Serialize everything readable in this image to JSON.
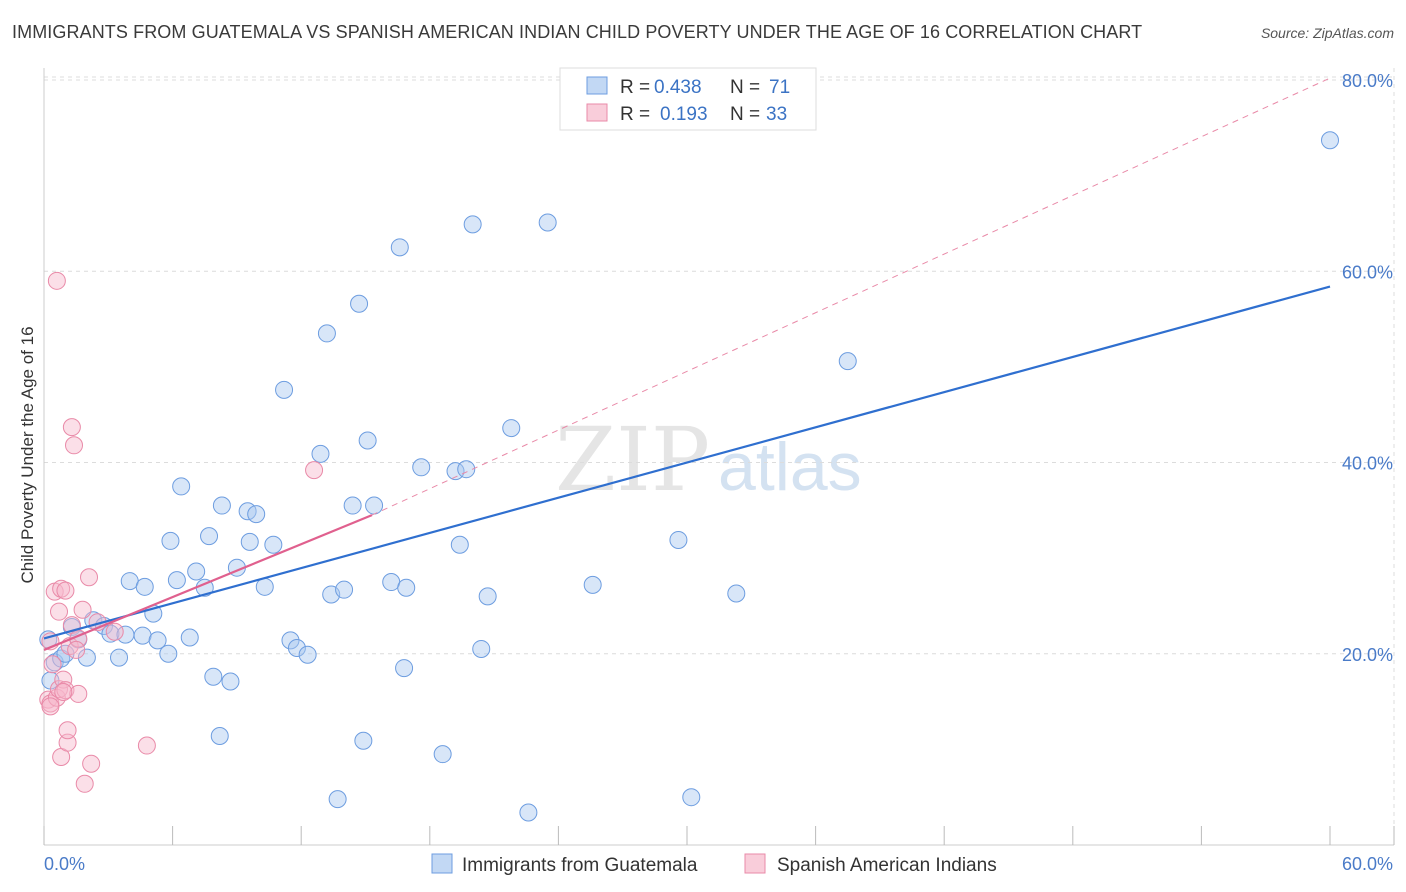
{
  "title": "IMMIGRANTS FROM GUATEMALA VS SPANISH AMERICAN INDIAN CHILD POVERTY UNDER THE AGE OF 16 CORRELATION CHART",
  "source": "Source: ZipAtlas.com",
  "colors": {
    "blue": "#a8c8f0",
    "blue_stroke": "#6d9de0",
    "blue_line": "#2f6fcf",
    "pink": "#f7b8cb",
    "pink_stroke": "#e98aa8",
    "pink_line": "#e0608e",
    "grid": "#dcdcdc",
    "tick_text": "#4a7bc8"
  },
  "legend": {
    "r_label": "R =",
    "n_label": "N =",
    "series": [
      {
        "r": "0.438",
        "n": "71"
      },
      {
        "r": "0.193",
        "n": "33"
      }
    ]
  },
  "bottom_legend": [
    "Immigrants from Guatemala",
    "Spanish American Indians"
  ],
  "watermark": {
    "zip": "ZIP",
    "atlas": "atlas"
  },
  "chart_data": {
    "type": "scatter",
    "ylabel": "Child Poverty Under the Age of 16",
    "xlim": [
      0,
      60
    ],
    "ylim": [
      0,
      80
    ],
    "x_tick_labels": [
      "0.0%",
      "60.0%"
    ],
    "y_ticks": [
      20,
      40,
      60,
      80
    ],
    "y_tick_labels": [
      "20.0%",
      "40.0%",
      "60.0%",
      "80.0%"
    ],
    "grid": true,
    "legend_position": "top-center",
    "series": [
      {
        "name": "Immigrants from Guatemala",
        "points": [
          [
            0.3,
            17.2
          ],
          [
            0.5,
            19.1
          ],
          [
            0.8,
            19.5
          ],
          [
            1.0,
            20.0
          ],
          [
            1.3,
            22.8
          ],
          [
            1.6,
            21.5
          ],
          [
            2.0,
            19.6
          ],
          [
            2.3,
            23.5
          ],
          [
            2.8,
            22.9
          ],
          [
            3.1,
            22.1
          ],
          [
            3.5,
            19.6
          ],
          [
            3.8,
            22.0
          ],
          [
            4.0,
            27.6
          ],
          [
            4.6,
            21.9
          ],
          [
            4.7,
            27.0
          ],
          [
            5.1,
            24.2
          ],
          [
            5.3,
            21.4
          ],
          [
            5.8,
            20.0
          ],
          [
            5.9,
            31.8
          ],
          [
            6.2,
            27.7
          ],
          [
            6.4,
            37.5
          ],
          [
            6.8,
            21.7
          ],
          [
            7.1,
            28.6
          ],
          [
            7.5,
            26.9
          ],
          [
            7.7,
            32.3
          ],
          [
            7.9,
            17.6
          ],
          [
            8.2,
            11.4
          ],
          [
            8.3,
            35.5
          ],
          [
            8.7,
            17.1
          ],
          [
            9.0,
            29.0
          ],
          [
            9.5,
            34.9
          ],
          [
            9.6,
            31.7
          ],
          [
            9.9,
            34.6
          ],
          [
            10.3,
            27.0
          ],
          [
            10.7,
            31.4
          ],
          [
            11.2,
            47.6
          ],
          [
            11.5,
            21.4
          ],
          [
            11.8,
            20.6
          ],
          [
            12.3,
            19.9
          ],
          [
            12.9,
            40.9
          ],
          [
            13.2,
            53.5
          ],
          [
            13.4,
            26.2
          ],
          [
            13.7,
            4.8
          ],
          [
            14.0,
            26.7
          ],
          [
            14.4,
            35.5
          ],
          [
            14.7,
            56.6
          ],
          [
            14.9,
            10.9
          ],
          [
            15.1,
            42.3
          ],
          [
            15.4,
            35.5
          ],
          [
            16.2,
            27.5
          ],
          [
            16.6,
            62.5
          ],
          [
            16.8,
            18.5
          ],
          [
            16.9,
            26.9
          ],
          [
            17.6,
            39.5
          ],
          [
            18.6,
            9.5
          ],
          [
            19.2,
            39.1
          ],
          [
            19.4,
            31.4
          ],
          [
            19.7,
            39.3
          ],
          [
            20.0,
            64.9
          ],
          [
            20.4,
            20.5
          ],
          [
            20.7,
            26.0
          ],
          [
            21.8,
            43.6
          ],
          [
            22.6,
            3.4
          ],
          [
            23.5,
            65.1
          ],
          [
            25.6,
            27.2
          ],
          [
            29.6,
            31.9
          ],
          [
            30.2,
            5.0
          ],
          [
            32.3,
            26.3
          ],
          [
            37.5,
            50.6
          ],
          [
            60.0,
            73.7
          ],
          [
            0.2,
            21.5
          ]
        ],
        "trend": [
          [
            0,
            21.6
          ],
          [
            60,
            58.4
          ]
        ]
      },
      {
        "name": "Spanish American Indians",
        "points": [
          [
            0.2,
            15.2
          ],
          [
            0.3,
            14.8
          ],
          [
            0.3,
            21.3
          ],
          [
            0.4,
            18.9
          ],
          [
            0.5,
            26.5
          ],
          [
            0.6,
            59.0
          ],
          [
            0.6,
            15.4
          ],
          [
            0.7,
            16.3
          ],
          [
            0.7,
            24.4
          ],
          [
            0.8,
            9.2
          ],
          [
            0.8,
            26.8
          ],
          [
            0.9,
            17.3
          ],
          [
            1.0,
            26.6
          ],
          [
            1.0,
            16.2
          ],
          [
            1.1,
            10.7
          ],
          [
            1.1,
            12.0
          ],
          [
            1.2,
            20.8
          ],
          [
            1.3,
            23.0
          ],
          [
            1.3,
            43.7
          ],
          [
            1.4,
            41.8
          ],
          [
            1.6,
            15.8
          ],
          [
            1.6,
            21.6
          ],
          [
            1.8,
            24.6
          ],
          [
            1.9,
            6.4
          ],
          [
            2.1,
            28.0
          ],
          [
            2.2,
            8.5
          ],
          [
            2.5,
            23.3
          ],
          [
            3.3,
            22.3
          ],
          [
            4.8,
            10.4
          ],
          [
            12.6,
            39.2
          ],
          [
            0.3,
            14.5
          ],
          [
            0.9,
            16.0
          ],
          [
            1.5,
            20.4
          ]
        ],
        "trend_solid": [
          [
            0,
            20.4
          ],
          [
            15.3,
            34.5
          ]
        ],
        "trend_dashed": [
          [
            15.3,
            34.5
          ],
          [
            60,
            80.2
          ]
        ]
      }
    ]
  }
}
